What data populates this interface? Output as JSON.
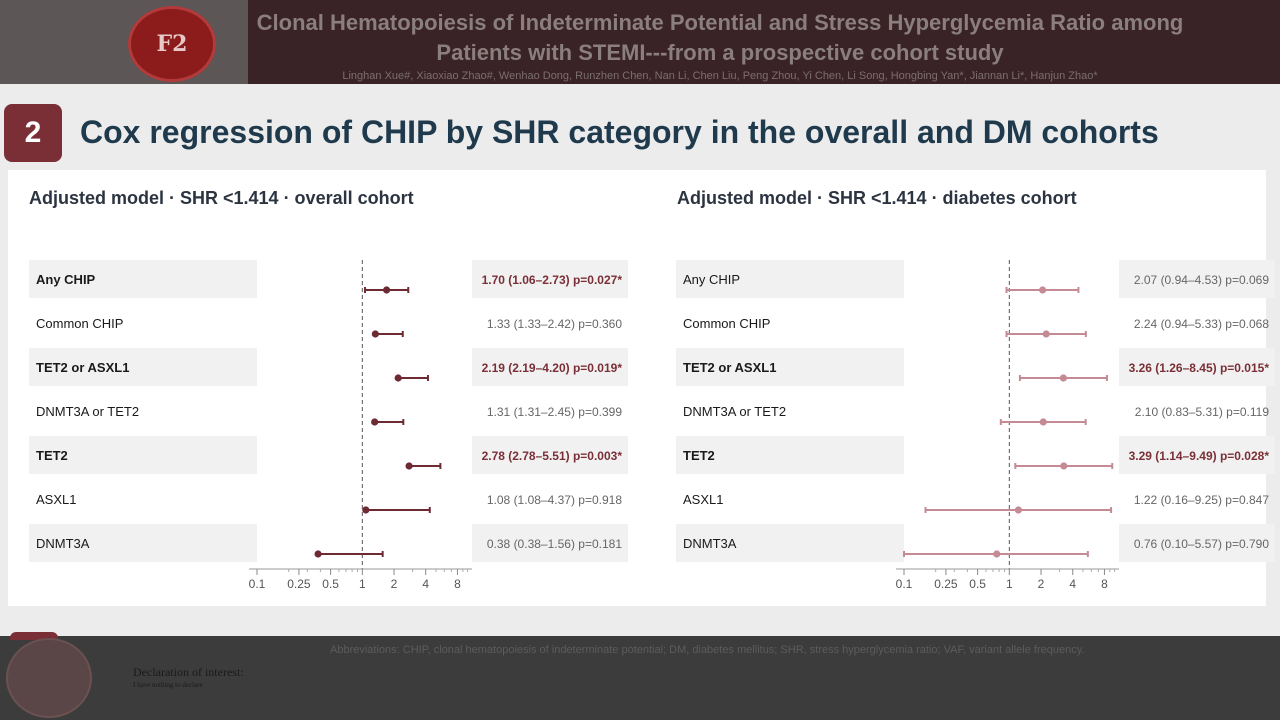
{
  "header": {
    "title_line1": "Clonal Hematopoiesis of Indeterminate Potential and Stress Hyperglycemia Ratio among",
    "title_line2": "Patients with STEMI---from a prospective cohort study",
    "authors": "Linghan Xue#, Xiaoxiao Zhao#, Wenhao Dong, Runzhen Chen, Nan Li, Chen Liu, Peng Zhou, Yi Chen, Li Song, Hongbing Yan*, Jiannan Li*, Hanjun Zhao*",
    "logo_text": "F2"
  },
  "slide": {
    "number": "2",
    "title": "Cox regression of CHIP by SHR category in the overall and DM cohorts"
  },
  "chart_data": [
    {
      "type": "forest",
      "title": "Adjusted model · SHR <1.414 · overall cohort",
      "x_scale": "log",
      "xlim": [
        0.1,
        11
      ],
      "reference_line": 1,
      "x_ticks": [
        0.1,
        0.25,
        0.5,
        1,
        2,
        4,
        8
      ],
      "x_tick_labels": [
        "0.1",
        "0.25",
        "0.5",
        "1",
        "2",
        "4",
        "8"
      ],
      "rows": [
        {
          "label": "Any CHIP",
          "hr": 1.7,
          "lo": 1.06,
          "hi": 2.73,
          "text": "1.70 (1.06–2.73)",
          "p": "p=0.027*",
          "significant": true
        },
        {
          "label": "Common CHIP",
          "hr": 1.33,
          "lo": 1.33,
          "hi": 2.42,
          "text": "1.33 (1.33–2.42)",
          "p": "p=0.360",
          "significant": false
        },
        {
          "label": "TET2 or ASXL1",
          "hr": 2.19,
          "lo": 2.19,
          "hi": 4.2,
          "text": "2.19 (2.19–4.20)",
          "p": "p=0.019*",
          "significant": true
        },
        {
          "label": "DNMT3A or TET2",
          "hr": 1.31,
          "lo": 1.31,
          "hi": 2.45,
          "text": "1.31 (1.31–2.45)",
          "p": "p=0.399",
          "significant": false
        },
        {
          "label": "TET2",
          "hr": 2.78,
          "lo": 2.78,
          "hi": 5.51,
          "text": "2.78 (2.78–5.51)",
          "p": "p=0.003*",
          "significant": true
        },
        {
          "label": "ASXL1",
          "hr": 1.08,
          "lo": 1.08,
          "hi": 4.37,
          "text": "1.08 (1.08–4.37)",
          "p": "p=0.918",
          "significant": false
        },
        {
          "label": "DNMT3A",
          "hr": 0.38,
          "lo": 0.38,
          "hi": 1.56,
          "text": "0.38 (0.38–1.56)",
          "p": "p=0.181",
          "significant": false
        }
      ],
      "colors": {
        "marker": "#6e2a33",
        "significant_text": "#7a2f36",
        "normal_text": "#666666"
      }
    },
    {
      "type": "forest",
      "title": "Adjusted model · SHR <1.414 · diabetes cohort",
      "x_scale": "log",
      "xlim": [
        0.1,
        11
      ],
      "reference_line": 1,
      "x_ticks": [
        0.1,
        0.25,
        0.5,
        1,
        2,
        4,
        8
      ],
      "x_tick_labels": [
        "0.1",
        "0.25",
        "0.5",
        "1",
        "2",
        "4",
        "8"
      ],
      "rows": [
        {
          "label": "Any CHIP",
          "hr": 2.07,
          "lo": 0.94,
          "hi": 4.53,
          "text": "2.07 (0.94–4.53)",
          "p": "p=0.069",
          "significant": false
        },
        {
          "label": "Common CHIP",
          "hr": 2.24,
          "lo": 0.94,
          "hi": 5.33,
          "text": "2.24 (0.94–5.33)",
          "p": "p=0.068",
          "significant": false
        },
        {
          "label": "TET2 or ASXL1",
          "hr": 3.26,
          "lo": 1.26,
          "hi": 8.45,
          "text": "3.26 (1.26–8.45)",
          "p": "p=0.015*",
          "significant": true
        },
        {
          "label": "DNMT3A or TET2",
          "hr": 2.1,
          "lo": 0.83,
          "hi": 5.31,
          "text": "2.10 (0.83–5.31)",
          "p": "p=0.119",
          "significant": false
        },
        {
          "label": "TET2",
          "hr": 3.29,
          "lo": 1.14,
          "hi": 9.49,
          "text": "3.29 (1.14–9.49)",
          "p": "p=0.028*",
          "significant": true
        },
        {
          "label": "ASXL1",
          "hr": 1.22,
          "lo": 0.16,
          "hi": 9.25,
          "text": "1.22 (0.16–9.25)",
          "p": "p=0.847",
          "significant": false
        },
        {
          "label": "DNMT3A",
          "hr": 0.76,
          "lo": 0.1,
          "hi": 5.57,
          "text": "0.76 (0.10–5.57)",
          "p": "p=0.790",
          "significant": false
        }
      ],
      "colors": {
        "marker": "#c48b94",
        "significant_text": "#7a2f36",
        "normal_text": "#666666"
      }
    }
  ],
  "footer": {
    "abbreviations": "Abbreviations: CHIP, clonal hematopoiesis of indeterminate potential; DM, diabetes mellitus; SHR, stress hyperglycemia ratio; VAF, variant allele frequency.",
    "declaration_title": "Declaration of interest:",
    "declaration_text": "I have nothing to declare"
  }
}
